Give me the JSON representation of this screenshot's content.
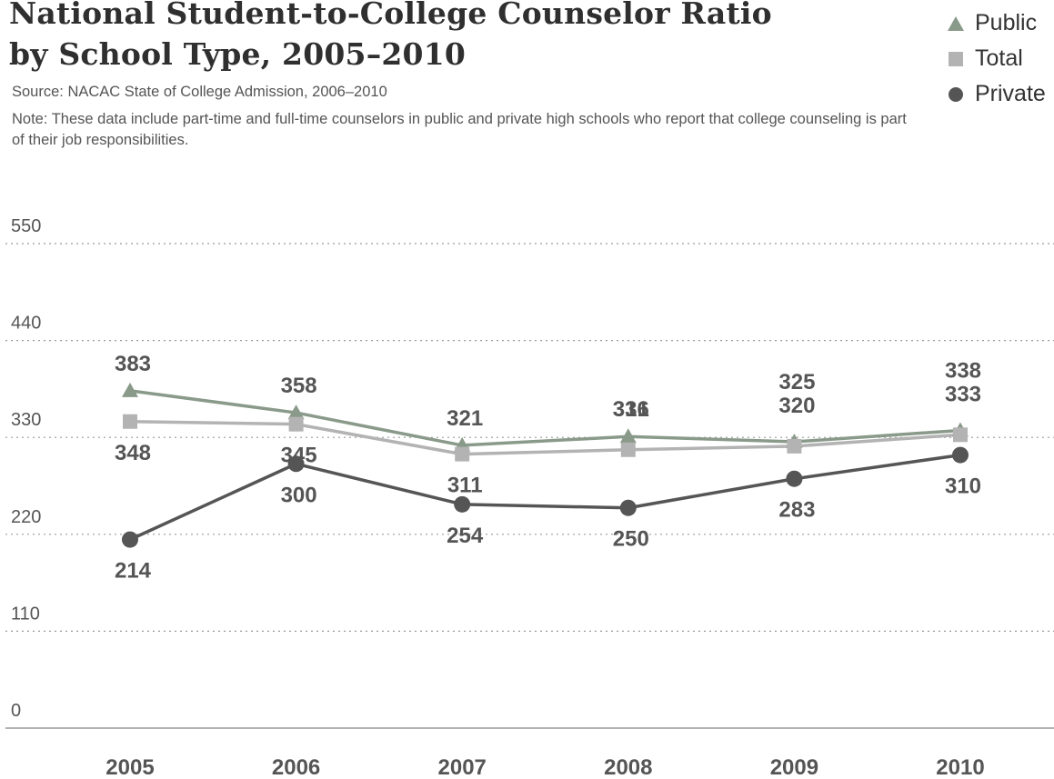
{
  "title_line1": "National Student-to-College Counselor Ratio",
  "title_line2": "by School Type, 2005–2010",
  "source": "Source: NACAC State of College Admission, 2006–2010",
  "note": "Note: These data include part-time and full-time counselors in public and private high schools who report that college counseling is part of their job responsibilities.",
  "legend": [
    {
      "label": "Public",
      "marker": "triangle",
      "color": "#8a9a8a"
    },
    {
      "label": "Total",
      "marker": "square",
      "color": "#b3b3b3"
    },
    {
      "label": "Private",
      "marker": "circle",
      "color": "#555555"
    }
  ],
  "chart_data": {
    "type": "line",
    "title": "National Student-to-College Counselor Ratio by School Type, 2005–2010",
    "x": [
      "2005",
      "2006",
      "2007",
      "2008",
      "2009",
      "2010"
    ],
    "yticks": [
      "0",
      "110",
      "220",
      "330",
      "440",
      "550"
    ],
    "ylim": [
      0,
      550
    ],
    "grid": true,
    "legend_position": "top-right",
    "series": [
      {
        "name": "Public",
        "marker": "triangle",
        "color": "#8a9a8a",
        "values": [
          383,
          358,
          321,
          331,
          325,
          338
        ]
      },
      {
        "name": "Total",
        "marker": "square",
        "color": "#b3b3b3",
        "values": [
          348,
          345,
          311,
          316,
          320,
          333
        ]
      },
      {
        "name": "Private",
        "marker": "circle",
        "color": "#555555",
        "values": [
          214,
          300,
          254,
          250,
          283,
          310
        ]
      }
    ]
  }
}
